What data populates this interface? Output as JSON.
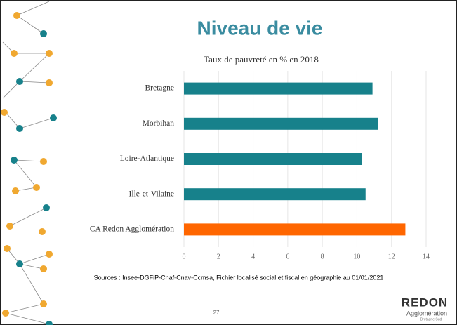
{
  "title": "Niveau de vie",
  "chart_data": {
    "type": "hbar",
    "title": "Taux de pauvreté en % en 2018",
    "categories": [
      "Bretagne",
      "Morbihan",
      "Loire-Atlantique",
      "Ille-et-Vilaine",
      "CA Redon Agglomération"
    ],
    "values": [
      10.9,
      11.2,
      10.3,
      10.5,
      12.8
    ],
    "colors": [
      "#17818b",
      "#17818b",
      "#17818b",
      "#17818b",
      "#ff6600"
    ],
    "xlim": [
      0,
      14
    ],
    "xticks": [
      0,
      2,
      4,
      6,
      8,
      10,
      12,
      14
    ],
    "grid": true
  },
  "source": "Sources : Insee-DGFiP-Cnaf-Cnav-Ccmsa, Fichier localisé social et fiscal en géographie au 01/01/2021",
  "page_number": "27",
  "logo": {
    "name": "REDON",
    "subtitle": "Agglomération",
    "tagline": "Bretagne Sud"
  }
}
